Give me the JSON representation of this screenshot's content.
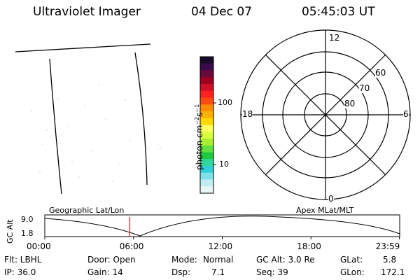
{
  "header": {
    "title": "Ultraviolet Imager",
    "date": "04 Dec 07",
    "time": "05:45:03 UT"
  },
  "colorbar": {
    "label_prefix": "photon cm",
    "label_exp1": "−2",
    "label_mid": "s",
    "label_exp2": "−1",
    "tick_100": "100",
    "tick_10": "10",
    "colors": [
      "#1a0a2a",
      "#3a0a4a",
      "#6a0a3a",
      "#a00020",
      "#d0102a",
      "#ff2020",
      "#ff4a10",
      "#ff8a00",
      "#ffb000",
      "#ffd800",
      "#ffff60",
      "#d8ff40",
      "#a8f030",
      "#60e040",
      "#20c840",
      "#30d8a0",
      "#30d0d8",
      "#80e0e8",
      "#c0eef0",
      "#e8f6f6"
    ]
  },
  "polar": {
    "lat_70": "70",
    "lat_80": "80",
    "lat_60": "60",
    "mlt_12": "12",
    "mlt_18": "18",
    "mlt_6": "6",
    "mlt_0": "0"
  },
  "timeline": {
    "axis_label": "GC Alt",
    "tick_hi": "9.0",
    "tick_lo": "1.8",
    "left_label": "Geographic Lat/Lon",
    "right_label": "Apex MLat/MLT",
    "hours": [
      "00:00",
      "06:00",
      "12:00",
      "18:00",
      "23:59"
    ],
    "current_hour": 5.75,
    "current_color": "#ff0000"
  },
  "status": {
    "flt": "Flt: LBHL",
    "ip": "IP: 36.0",
    "door": "Door: Open",
    "gain": "Gain: 14",
    "mode_label": "Mode:",
    "mode_value": "Normal",
    "dsp_label": "Dsp:",
    "dsp_value": "7.1",
    "gcalt": "GC Alt: 3.0 Re",
    "seq": "Seq: 39",
    "glat_label": "GLat:",
    "glat_value": "5.8",
    "glon_label": "GLon:",
    "glon_value": "172.1"
  }
}
